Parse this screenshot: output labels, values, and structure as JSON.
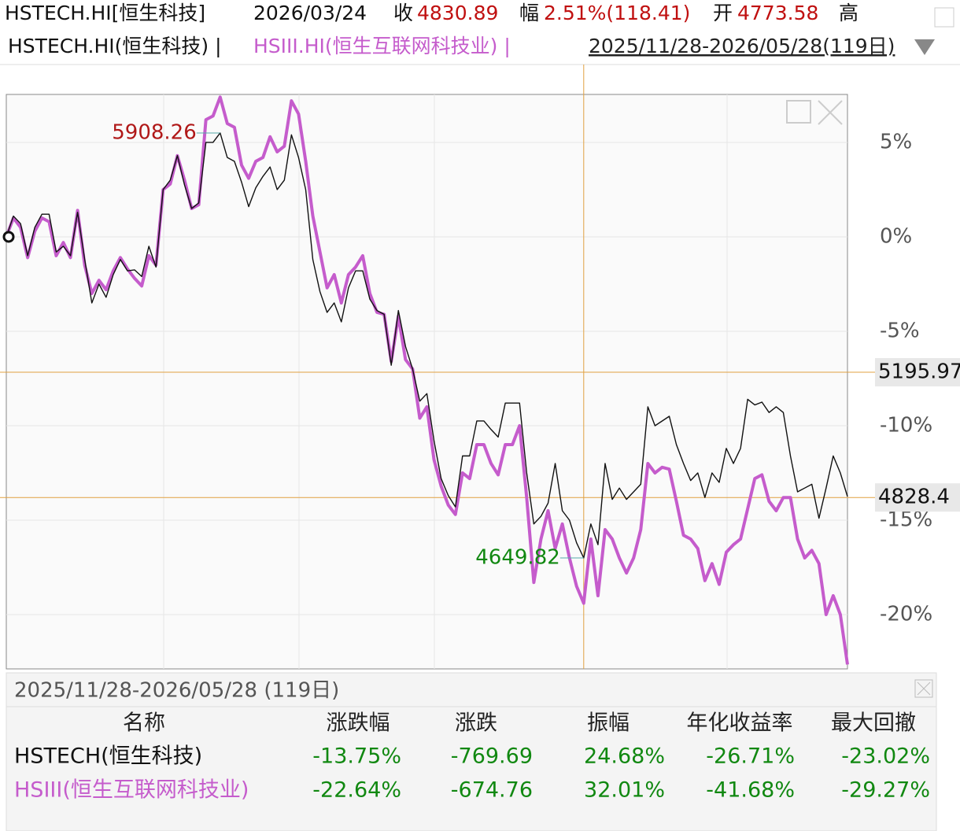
{
  "header": {
    "symbol": "HSTECH.HI[恒生科技]",
    "date": "2026/03/24",
    "close_label": "收",
    "close": "4830.89",
    "change_label": "幅",
    "change": "2.51%(118.41)",
    "open_label": "开",
    "open": "4773.58",
    "high_label": "高",
    "compare_a": "HSTECH.HI(恒生科技) |",
    "compare_b": "HSIII.HI(恒生互联网科技业) |",
    "range": "2025/11/28-2026/05/28(119日)"
  },
  "chart_data": {
    "type": "line",
    "ylim": [
      -22.875,
      7.54
    ],
    "yticks": [
      {
        "value": 5,
        "label": "5%"
      },
      {
        "value": 0,
        "label": "0%"
      },
      {
        "value": -5,
        "label": "-5%"
      },
      {
        "value": -10,
        "label": "-10%"
      },
      {
        "value": -15,
        "label": "-15%"
      },
      {
        "value": -20,
        "label": "-20%"
      }
    ],
    "grid": true,
    "series": [
      {
        "name": "HSTECH.HI(恒生科技)",
        "color": "#111111",
        "values": [
          0,
          1.1,
          0.7,
          -1.0,
          0.5,
          1.2,
          1.2,
          -0.8,
          -0.5,
          -1.0,
          1.3,
          -1.2,
          -3.5,
          -2.5,
          -3.2,
          -2.0,
          -1.2,
          -1.8,
          -1.75,
          -2.1,
          -0.5,
          -1.6,
          2.5,
          3.0,
          4.3,
          2.75,
          1.5,
          1.8,
          5.0,
          5.0,
          5.5,
          4.2,
          4.0,
          2.9,
          1.6,
          2.6,
          3.2,
          3.7,
          2.5,
          3.0,
          5.4,
          4.2,
          2.5,
          -1.2,
          -2.9,
          -4.0,
          -3.5,
          -4.5,
          -2.7,
          -1.8,
          -1.8,
          -3.3,
          -3.9,
          -4.1,
          -6.8,
          -3.9,
          -5.8,
          -7.0,
          -8.7,
          -8.3,
          -10.8,
          -12.8,
          -13.7,
          -14.3,
          -11.6,
          -11.6,
          -9.75,
          -9.75,
          -10.2,
          -10.6,
          -8.8,
          -8.8,
          -8.8,
          -12.5,
          -15.2,
          -14.8,
          -14.1,
          -12.0,
          -14.5,
          -15.0,
          -16.2,
          -17.0,
          -15.2,
          -16.3,
          -12.0,
          -13.9,
          -13.3,
          -13.9,
          -13.5,
          -13.1,
          -9.0,
          -10.0,
          -9.75,
          -9.5,
          -11.0,
          -12.0,
          -12.9,
          -12.5,
          -13.8,
          -12.5,
          -13.0,
          -11.2,
          -12.0,
          -11.2,
          -8.6,
          -8.9,
          -8.75,
          -9.3,
          -9.0,
          -9.3,
          -11.6,
          -13.5,
          -13.3,
          -13.1,
          -14.9,
          -13.3,
          -11.6,
          -12.5,
          -13.75
        ]
      },
      {
        "name": "HSIII.HI(恒生互联网科技业)",
        "color": "#c55ccc",
        "values": [
          0,
          1.0,
          0.5,
          -1.1,
          0.3,
          1.0,
          0.8,
          -1.0,
          -0.3,
          -1.1,
          1.4,
          -1.5,
          -3.0,
          -2.3,
          -2.8,
          -1.8,
          -1.1,
          -1.7,
          -2.2,
          -2.6,
          -1.0,
          -1.5,
          2.5,
          2.8,
          4.3,
          3.0,
          1.5,
          1.7,
          6.2,
          6.4,
          7.4,
          6.0,
          5.8,
          3.8,
          3.1,
          4.0,
          4.2,
          5.3,
          4.5,
          4.8,
          7.2,
          6.5,
          4.0,
          1.1,
          -0.8,
          -2.7,
          -2.0,
          -3.5,
          -2.0,
          -1.6,
          -1.0,
          -3.0,
          -4.0,
          -4.1,
          -6.6,
          -4.2,
          -6.5,
          -7.0,
          -9.6,
          -9.0,
          -11.8,
          -13.2,
          -14.2,
          -14.7,
          -12.5,
          -12.8,
          -11.0,
          -11.0,
          -12.0,
          -12.6,
          -11.0,
          -11.0,
          -10.0,
          -13.8,
          -18.3,
          -16.0,
          -14.5,
          -16.5,
          -15.2,
          -17.0,
          -18.5,
          -19.4,
          -16.0,
          -19.0,
          -15.5,
          -16.0,
          -17.0,
          -17.8,
          -17.0,
          -15.5,
          -12.0,
          -12.5,
          -12.2,
          -12.3,
          -14.0,
          -15.8,
          -16.0,
          -16.5,
          -18.2,
          -17.3,
          -18.4,
          -16.7,
          -16.3,
          -16.0,
          -14.4,
          -12.8,
          -12.6,
          -14.0,
          -14.5,
          -13.8,
          -13.8,
          -16.0,
          -17.0,
          -16.6,
          -17.3,
          -20.0,
          -19.0,
          -20.0,
          -22.64
        ]
      }
    ],
    "annotations": [
      {
        "text": "5908.26",
        "series": 0,
        "index": 30,
        "color": "#b01818"
      },
      {
        "text": "4649.82",
        "series": 0,
        "index": 81,
        "color": "#118811"
      }
    ],
    "price_lines": [
      {
        "label": "5195.97",
        "value": -7.17
      },
      {
        "label": "4828.4",
        "value": -13.8
      }
    ],
    "crosshair_index": 81
  },
  "table": {
    "title": "2025/11/28-2026/05/28 (119日)",
    "columns": [
      "名称",
      "涨跌幅",
      "涨跌",
      "振幅",
      "年化收益率",
      "最大回撤"
    ],
    "rows": [
      [
        "HSTECH(恒生科技)",
        "-13.75%",
        "-769.69",
        "24.68%",
        "-26.71%",
        "-23.02%"
      ],
      [
        "HSIII(恒生互联网科技业)",
        "-22.64%",
        "-674.76",
        "32.01%",
        "-41.68%",
        "-29.27%"
      ]
    ]
  }
}
